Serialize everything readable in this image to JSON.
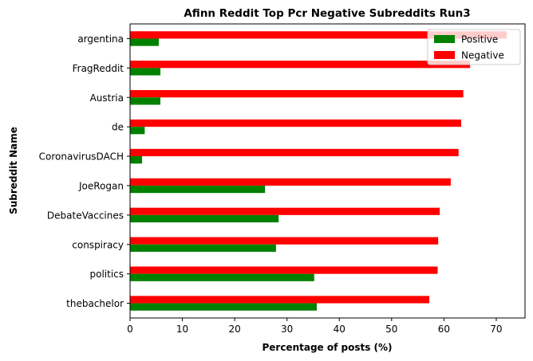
{
  "chart_data": {
    "type": "bar",
    "orientation": "horizontal",
    "title": "Afinn Reddit Top Pcr Negative Subreddits Run3",
    "xlabel": "Percentage of posts (%)",
    "ylabel": "Subreddit Name",
    "xlim": [
      0,
      75.5
    ],
    "xticks": [
      0,
      10,
      20,
      30,
      40,
      50,
      60,
      70
    ],
    "grid": false,
    "legend_position": "top-right",
    "categories": [
      "argentina",
      "FragReddit",
      "Austria",
      "de",
      "CoronavirusDACH",
      "JoeRogan",
      "DebateVaccines",
      "conspiracy",
      "politics",
      "thebachelor"
    ],
    "series": [
      {
        "name": "Positive",
        "color": "#008000",
        "values": [
          5.5,
          5.8,
          5.8,
          2.8,
          2.3,
          25.8,
          28.4,
          27.9,
          35.2,
          35.7
        ]
      },
      {
        "name": "Negative",
        "color": "#ff0000",
        "values": [
          72.0,
          65.0,
          63.7,
          63.3,
          62.8,
          61.3,
          59.2,
          58.9,
          58.8,
          57.2
        ]
      }
    ]
  }
}
